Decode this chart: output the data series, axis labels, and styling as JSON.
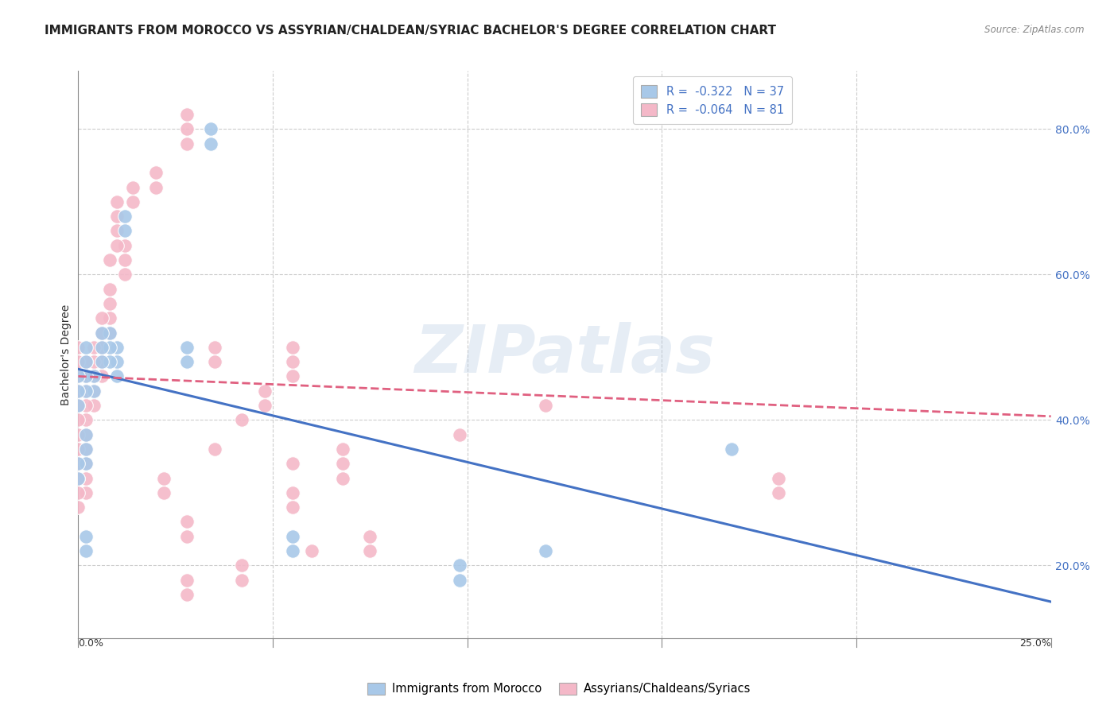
{
  "title": "IMMIGRANTS FROM MOROCCO VS ASSYRIAN/CHALDEAN/SYRIAC BACHELOR'S DEGREE CORRELATION CHART",
  "source": "Source: ZipAtlas.com",
  "ylabel": "Bachelor's Degree",
  "right_yticks": [
    "20.0%",
    "40.0%",
    "60.0%",
    "80.0%"
  ],
  "right_ytick_vals": [
    0.2,
    0.4,
    0.6,
    0.8
  ],
  "xlim": [
    0.0,
    0.25
  ],
  "ylim": [
    0.1,
    0.88
  ],
  "legend_r1": "R =  -0.322   N = 37",
  "legend_r2": "R =  -0.064   N = 81",
  "blue_color": "#a8c8e8",
  "pink_color": "#f4b8c8",
  "blue_line_color": "#4472c4",
  "pink_line_color": "#e06080",
  "blue_scatter_x": [
    0.034,
    0.034,
    0.028,
    0.028,
    0.012,
    0.012,
    0.01,
    0.01,
    0.01,
    0.008,
    0.008,
    0.008,
    0.006,
    0.006,
    0.006,
    0.004,
    0.004,
    0.002,
    0.002,
    0.002,
    0.002,
    0.002,
    0.002,
    0.002,
    0.002,
    0.002,
    0.0,
    0.0,
    0.0,
    0.0,
    0.0,
    0.055,
    0.055,
    0.168,
    0.12,
    0.098,
    0.098
  ],
  "blue_scatter_y": [
    0.8,
    0.78,
    0.5,
    0.48,
    0.68,
    0.66,
    0.5,
    0.48,
    0.46,
    0.52,
    0.5,
    0.48,
    0.52,
    0.5,
    0.48,
    0.46,
    0.44,
    0.5,
    0.48,
    0.46,
    0.44,
    0.38,
    0.36,
    0.34,
    0.24,
    0.22,
    0.46,
    0.44,
    0.42,
    0.34,
    0.32,
    0.24,
    0.22,
    0.36,
    0.22,
    0.2,
    0.18
  ],
  "pink_scatter_x": [
    0.028,
    0.028,
    0.028,
    0.02,
    0.02,
    0.014,
    0.014,
    0.012,
    0.012,
    0.012,
    0.01,
    0.01,
    0.01,
    0.01,
    0.008,
    0.008,
    0.008,
    0.008,
    0.008,
    0.006,
    0.006,
    0.006,
    0.006,
    0.006,
    0.004,
    0.004,
    0.004,
    0.004,
    0.004,
    0.002,
    0.002,
    0.002,
    0.002,
    0.002,
    0.002,
    0.002,
    0.002,
    0.002,
    0.002,
    0.0,
    0.0,
    0.0,
    0.0,
    0.0,
    0.0,
    0.0,
    0.0,
    0.0,
    0.0,
    0.0,
    0.0,
    0.055,
    0.055,
    0.055,
    0.035,
    0.035,
    0.048,
    0.048,
    0.042,
    0.12,
    0.098,
    0.068,
    0.068,
    0.068,
    0.035,
    0.055,
    0.022,
    0.022,
    0.055,
    0.055,
    0.028,
    0.028,
    0.075,
    0.075,
    0.042,
    0.042,
    0.028,
    0.028,
    0.06,
    0.18,
    0.18
  ],
  "pink_scatter_y": [
    0.82,
    0.8,
    0.78,
    0.74,
    0.72,
    0.72,
    0.7,
    0.64,
    0.62,
    0.6,
    0.7,
    0.68,
    0.66,
    0.64,
    0.62,
    0.58,
    0.56,
    0.54,
    0.52,
    0.54,
    0.52,
    0.5,
    0.48,
    0.46,
    0.5,
    0.48,
    0.46,
    0.44,
    0.42,
    0.48,
    0.46,
    0.44,
    0.42,
    0.4,
    0.38,
    0.36,
    0.34,
    0.32,
    0.3,
    0.5,
    0.48,
    0.46,
    0.44,
    0.42,
    0.4,
    0.38,
    0.36,
    0.34,
    0.32,
    0.3,
    0.28,
    0.5,
    0.48,
    0.46,
    0.5,
    0.48,
    0.44,
    0.42,
    0.4,
    0.42,
    0.38,
    0.36,
    0.34,
    0.32,
    0.36,
    0.34,
    0.32,
    0.3,
    0.3,
    0.28,
    0.26,
    0.24,
    0.24,
    0.22,
    0.2,
    0.18,
    0.18,
    0.16,
    0.22,
    0.32,
    0.3
  ],
  "blue_trend_x": [
    0.0,
    0.25
  ],
  "blue_trend_y": [
    0.47,
    0.15
  ],
  "pink_trend_x": [
    0.0,
    0.25
  ],
  "pink_trend_y": [
    0.46,
    0.405
  ],
  "grid_color": "#cccccc",
  "background_color": "#ffffff",
  "title_fontsize": 11,
  "label_fontsize": 10,
  "tick_fontsize": 9,
  "watermark": "ZIPatlas"
}
